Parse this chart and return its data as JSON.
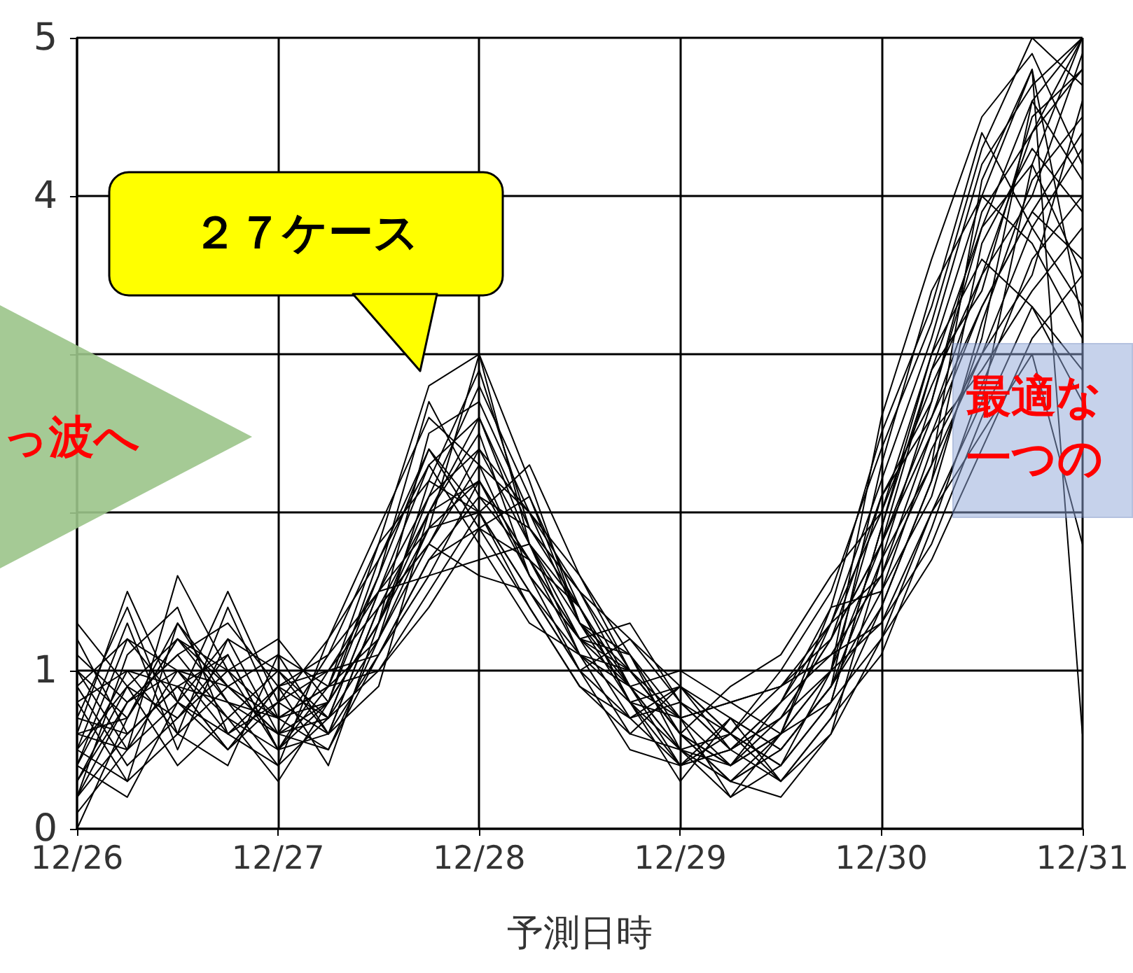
{
  "chart_data": {
    "type": "line",
    "xlabel": "予測日時",
    "grid": true,
    "marker": "none",
    "line_style": "solid",
    "xlim": [
      "--12-26",
      "--12-31"
    ],
    "xticks": [
      {
        "value": "--12-26",
        "label": "12/26"
      },
      {
        "value": "--12-27",
        "label": "12/27"
      },
      {
        "value": "--12-28",
        "label": "12/28"
      },
      {
        "value": "--12-29",
        "label": "12/29"
      },
      {
        "value": "--12-30",
        "label": "12/30"
      },
      {
        "value": "--12-31",
        "label": "12/31"
      }
    ],
    "ylim": [
      0,
      5
    ],
    "yticks": [
      0,
      1,
      {
        "value": 2,
        "label": null
      },
      {
        "value": 3,
        "label": null
      },
      4,
      5
    ],
    "x": [
      "--12-26T00:00",
      "--12-26T06:00",
      "--12-26T12:00",
      "--12-26T18:00",
      "--12-27T00:00",
      "--12-27T06:00",
      "--12-27T12:00",
      "--12-27T18:00",
      "--12-28T00:00",
      "--12-28T06:00",
      "--12-28T12:00",
      "--12-28T18:00",
      "--12-29T00:00",
      "--12-29T06:00",
      "--12-29T12:00",
      "--12-29T18:00",
      "--12-30T00:00",
      "--12-30T06:00",
      "--12-30T12:00",
      "--12-30T18:00",
      "--12-31T00:00"
    ],
    "annotations": [
      "２７ケース",
      "っ波へ",
      "最適な",
      "一つの"
    ],
    "series": [
      {
        "color": "#000000",
        "values": [
          0.5,
          0.9,
          1.2,
          0.8,
          0.7,
          0.9,
          1.6,
          2.4,
          2.0,
          1.5,
          1.1,
          0.9,
          0.5,
          0.4,
          0.7,
          1.2,
          1.8,
          2.9,
          3.8,
          4.2,
          3.5
        ]
      },
      {
        "color": "#000000",
        "values": [
          0.2,
          0.6,
          0.9,
          1.1,
          0.5,
          0.8,
          1.3,
          2.0,
          2.6,
          1.8,
          1.2,
          1.0,
          0.6,
          0.3,
          0.5,
          0.9,
          1.4,
          2.2,
          3.1,
          4.6,
          5.0
        ]
      },
      {
        "color": "#000000",
        "values": [
          1.0,
          0.7,
          1.3,
          0.9,
          0.6,
          0.7,
          1.5,
          1.9,
          2.2,
          1.7,
          1.4,
          0.8,
          0.9,
          0.6,
          0.4,
          1.0,
          2.1,
          2.6,
          3.3,
          3.9,
          4.4
        ]
      },
      {
        "color": "#000000",
        "values": [
          0.4,
          1.2,
          0.8,
          0.6,
          0.9,
          1.0,
          1.1,
          1.7,
          1.9,
          2.1,
          1.3,
          1.1,
          0.7,
          0.8,
          0.9,
          1.3,
          1.6,
          2.3,
          4.1,
          4.8,
          3.2
        ]
      },
      {
        "color": "#000000",
        "values": [
          0.8,
          0.3,
          0.6,
          1.4,
          0.7,
          0.5,
          1.2,
          2.2,
          2.9,
          1.9,
          1.5,
          0.9,
          0.5,
          0.2,
          0.6,
          0.8,
          1.9,
          3.0,
          3.6,
          3.3,
          2.7
        ]
      },
      {
        "color": "#000000",
        "values": [
          0.1,
          0.5,
          1.0,
          0.9,
          1.1,
          0.6,
          1.4,
          1.8,
          1.6,
          1.5,
          1.0,
          1.2,
          0.8,
          0.5,
          0.3,
          0.7,
          1.1,
          1.9,
          2.8,
          3.6,
          4.0
        ]
      },
      {
        "color": "#000000",
        "values": [
          0.6,
          1.5,
          0.8,
          0.5,
          0.8,
          1.2,
          1.9,
          2.6,
          2.3,
          1.6,
          1.2,
          0.7,
          0.4,
          0.6,
          1.0,
          1.5,
          2.4,
          3.2,
          4.3,
          5.0,
          4.7
        ]
      },
      {
        "color": "#000000",
        "values": [
          1.3,
          0.9,
          0.4,
          0.7,
          0.5,
          0.9,
          1.0,
          1.5,
          2.0,
          1.4,
          0.9,
          0.6,
          0.9,
          0.5,
          0.8,
          1.1,
          1.3,
          2.0,
          2.5,
          3.0,
          1.8
        ]
      },
      {
        "color": "#000000",
        "values": [
          0.3,
          0.8,
          1.1,
          1.3,
          0.9,
          0.4,
          1.3,
          2.1,
          2.4,
          2.0,
          1.6,
          1.1,
          0.6,
          0.3,
          0.2,
          0.6,
          1.7,
          2.7,
          3.9,
          4.4,
          5.0
        ]
      },
      {
        "color": "#000000",
        "values": [
          0.9,
          0.4,
          0.7,
          1.0,
          1.2,
          0.8,
          1.7,
          2.3,
          1.8,
          1.3,
          1.1,
          0.8,
          0.3,
          0.7,
          0.5,
          0.9,
          2.3,
          3.4,
          4.0,
          3.7,
          3.1
        ]
      },
      {
        "color": "#000000",
        "values": [
          0.2,
          1.1,
          1.4,
          0.6,
          0.4,
          0.7,
          1.2,
          1.9,
          3.0,
          2.2,
          1.3,
          1.0,
          0.7,
          0.4,
          0.6,
          1.4,
          1.5,
          2.1,
          3.2,
          4.1,
          4.5
        ]
      },
      {
        "color": "#000000",
        "values": [
          0.7,
          0.6,
          0.9,
          0.8,
          0.6,
          1.1,
          1.5,
          1.6,
          1.7,
          1.8,
          1.4,
          0.9,
          1.0,
          0.8,
          0.9,
          1.2,
          1.8,
          2.5,
          2.9,
          3.4,
          3.8
        ]
      },
      {
        "color": "#000000",
        "values": [
          0.5,
          1.3,
          0.5,
          1.2,
          1.0,
          0.6,
          0.9,
          2.0,
          2.5,
          1.6,
          1.0,
          0.5,
          0.4,
          0.5,
          0.7,
          1.0,
          2.6,
          3.6,
          4.5,
          4.9,
          4.2
        ]
      },
      {
        "color": "#000000",
        "values": [
          1.1,
          0.8,
          1.0,
          0.7,
          0.3,
          0.8,
          1.6,
          2.7,
          2.1,
          1.7,
          1.2,
          1.3,
          0.8,
          0.6,
          0.4,
          0.8,
          1.2,
          1.7,
          2.4,
          3.1,
          3.5
        ]
      },
      {
        "color": "#000000",
        "values": [
          0.4,
          0.2,
          0.8,
          1.5,
          0.8,
          1.0,
          1.4,
          1.8,
          2.3,
          2.0,
          1.5,
          1.0,
          0.6,
          0.9,
          1.1,
          1.6,
          2.0,
          2.8,
          3.5,
          4.0,
          4.9
        ]
      },
      {
        "color": "#000000",
        "values": [
          0.0,
          0.7,
          1.2,
          0.9,
          0.6,
          0.5,
          1.1,
          1.7,
          2.1,
          1.9,
          1.4,
          0.8,
          0.5,
          0.3,
          0.5,
          0.9,
          1.5,
          2.4,
          3.0,
          3.8,
          4.3
        ]
      },
      {
        "color": "#000000",
        "values": [
          0.8,
          1.0,
          0.6,
          0.4,
          1.1,
          0.9,
          1.8,
          2.2,
          2.0,
          1.5,
          1.0,
          0.7,
          0.9,
          0.7,
          0.3,
          0.7,
          1.4,
          2.2,
          3.7,
          4.3,
          3.9
        ]
      },
      {
        "color": "#000000",
        "values": [
          0.6,
          0.5,
          1.6,
          1.0,
          0.7,
          0.8,
          1.3,
          2.5,
          2.7,
          2.0,
          1.3,
          0.9,
          0.4,
          0.5,
          0.8,
          1.3,
          2.2,
          3.1,
          4.2,
          4.7,
          5.0
        ]
      },
      {
        "color": "#000000",
        "values": [
          1.2,
          0.6,
          0.9,
          0.5,
          0.9,
          0.7,
          1.0,
          1.4,
          1.9,
          1.7,
          1.1,
          1.0,
          0.6,
          0.4,
          0.6,
          1.0,
          1.3,
          1.8,
          2.6,
          3.3,
          2.9
        ]
      },
      {
        "color": "#000000",
        "values": [
          0.3,
          0.9,
          0.7,
          1.1,
          0.5,
          1.0,
          1.5,
          2.1,
          2.8,
          2.1,
          1.4,
          0.8,
          0.7,
          0.2,
          0.4,
          0.8,
          1.9,
          2.9,
          3.4,
          4.5,
          4.8
        ]
      },
      {
        "color": "#000000",
        "values": [
          0.9,
          1.2,
          1.0,
          0.6,
          0.8,
          0.6,
          1.4,
          2.0,
          2.2,
          1.6,
          1.2,
          1.1,
          0.5,
          0.6,
          0.9,
          1.1,
          1.6,
          2.5,
          3.3,
          3.9,
          3.6
        ]
      },
      {
        "color": "#000000",
        "values": [
          0.5,
          0.3,
          1.3,
          0.8,
          0.4,
          1.2,
          1.7,
          2.4,
          1.9,
          1.4,
          0.9,
          0.7,
          0.8,
          0.5,
          0.7,
          1.2,
          2.1,
          2.7,
          3.8,
          4.6,
          4.1
        ]
      },
      {
        "color": "#000000",
        "values": [
          0.7,
          1.4,
          0.6,
          0.9,
          0.7,
          0.9,
          1.2,
          1.8,
          2.4,
          1.8,
          1.3,
          0.8,
          0.4,
          0.7,
          0.5,
          0.9,
          1.7,
          2.3,
          3.0,
          3.5,
          4.6
        ]
      },
      {
        "color": "#000000",
        "values": [
          0.2,
          0.8,
          1.1,
          0.7,
          1.0,
          0.7,
          1.5,
          2.3,
          2.6,
          1.9,
          1.5,
          1.2,
          0.9,
          0.6,
          0.3,
          0.6,
          1.2,
          2.0,
          2.7,
          4.2,
          5.0
        ]
      },
      {
        "color": "#000000",
        "values": [
          1.0,
          0.5,
          0.8,
          1.2,
          0.6,
          0.8,
          1.3,
          1.9,
          2.0,
          2.3,
          1.6,
          1.0,
          0.6,
          0.4,
          0.8,
          1.4,
          2.5,
          3.3,
          4.4,
          3.8,
          3.3
        ]
      },
      {
        "color": "#000000",
        "values": [
          0.4,
          1.0,
          0.9,
          0.5,
          0.9,
          1.1,
          1.8,
          2.8,
          3.0,
          1.8,
          1.1,
          0.6,
          0.5,
          0.3,
          0.6,
          1.0,
          1.8,
          2.6,
          3.5,
          4.4,
          4.8
        ]
      },
      {
        "color": "#000000",
        "values": [
          0.6,
          0.7,
          1.2,
          1.0,
          0.5,
          0.6,
          1.1,
          1.6,
          2.2,
          1.7,
          1.2,
          0.9,
          0.7,
          0.8,
          0.6,
          1.3,
          2.0,
          3.0,
          4.0,
          4.8,
          0.6
        ]
      }
    ]
  }
}
